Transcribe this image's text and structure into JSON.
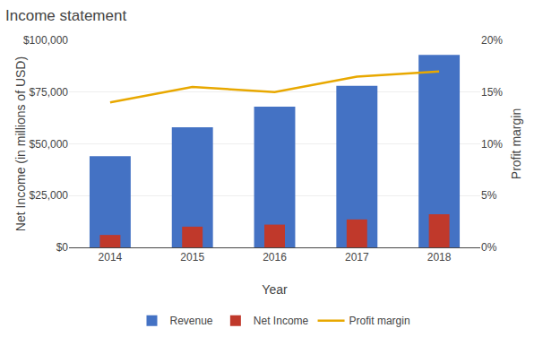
{
  "chart_data": {
    "type": "bar",
    "title": "Income statement",
    "x_label": "Year",
    "y_label": "Net Income (in millions of USD)",
    "y2_label": "Profit margin",
    "categories": [
      "2014",
      "2015",
      "2016",
      "2017",
      "2018"
    ],
    "series": [
      {
        "name": "Revenue",
        "type": "bar",
        "color": "#4472C4",
        "values": [
          44000,
          58000,
          68000,
          78000,
          93000
        ]
      },
      {
        "name": "Net Income",
        "type": "bar",
        "color": "#C0392B",
        "values": [
          6000,
          10000,
          11000,
          13500,
          16000
        ]
      },
      {
        "name": "Profit margin",
        "type": "line",
        "color": "#E8A800",
        "axis": "y2",
        "line_style": "solid",
        "values": [
          0.14,
          0.155,
          0.15,
          0.165,
          0.17
        ]
      }
    ],
    "ylim": [
      0,
      100000
    ],
    "yticks": [
      {
        "value": 0,
        "label": "$0"
      },
      {
        "value": 25000,
        "label": "$25,000"
      },
      {
        "value": 50000,
        "label": "$50,000"
      },
      {
        "value": 75000,
        "label": "$75,000"
      },
      {
        "value": 100000,
        "label": "$100,000"
      }
    ],
    "y2lim": [
      0,
      0.2
    ],
    "y2ticks": [
      {
        "value": 0,
        "label": "0%"
      },
      {
        "value": 0.05,
        "label": "5%"
      },
      {
        "value": 0.1,
        "label": "10%"
      },
      {
        "value": 0.15,
        "label": "15%"
      },
      {
        "value": 0.2,
        "label": "20%"
      }
    ],
    "grid": true,
    "legend": "bottom"
  }
}
